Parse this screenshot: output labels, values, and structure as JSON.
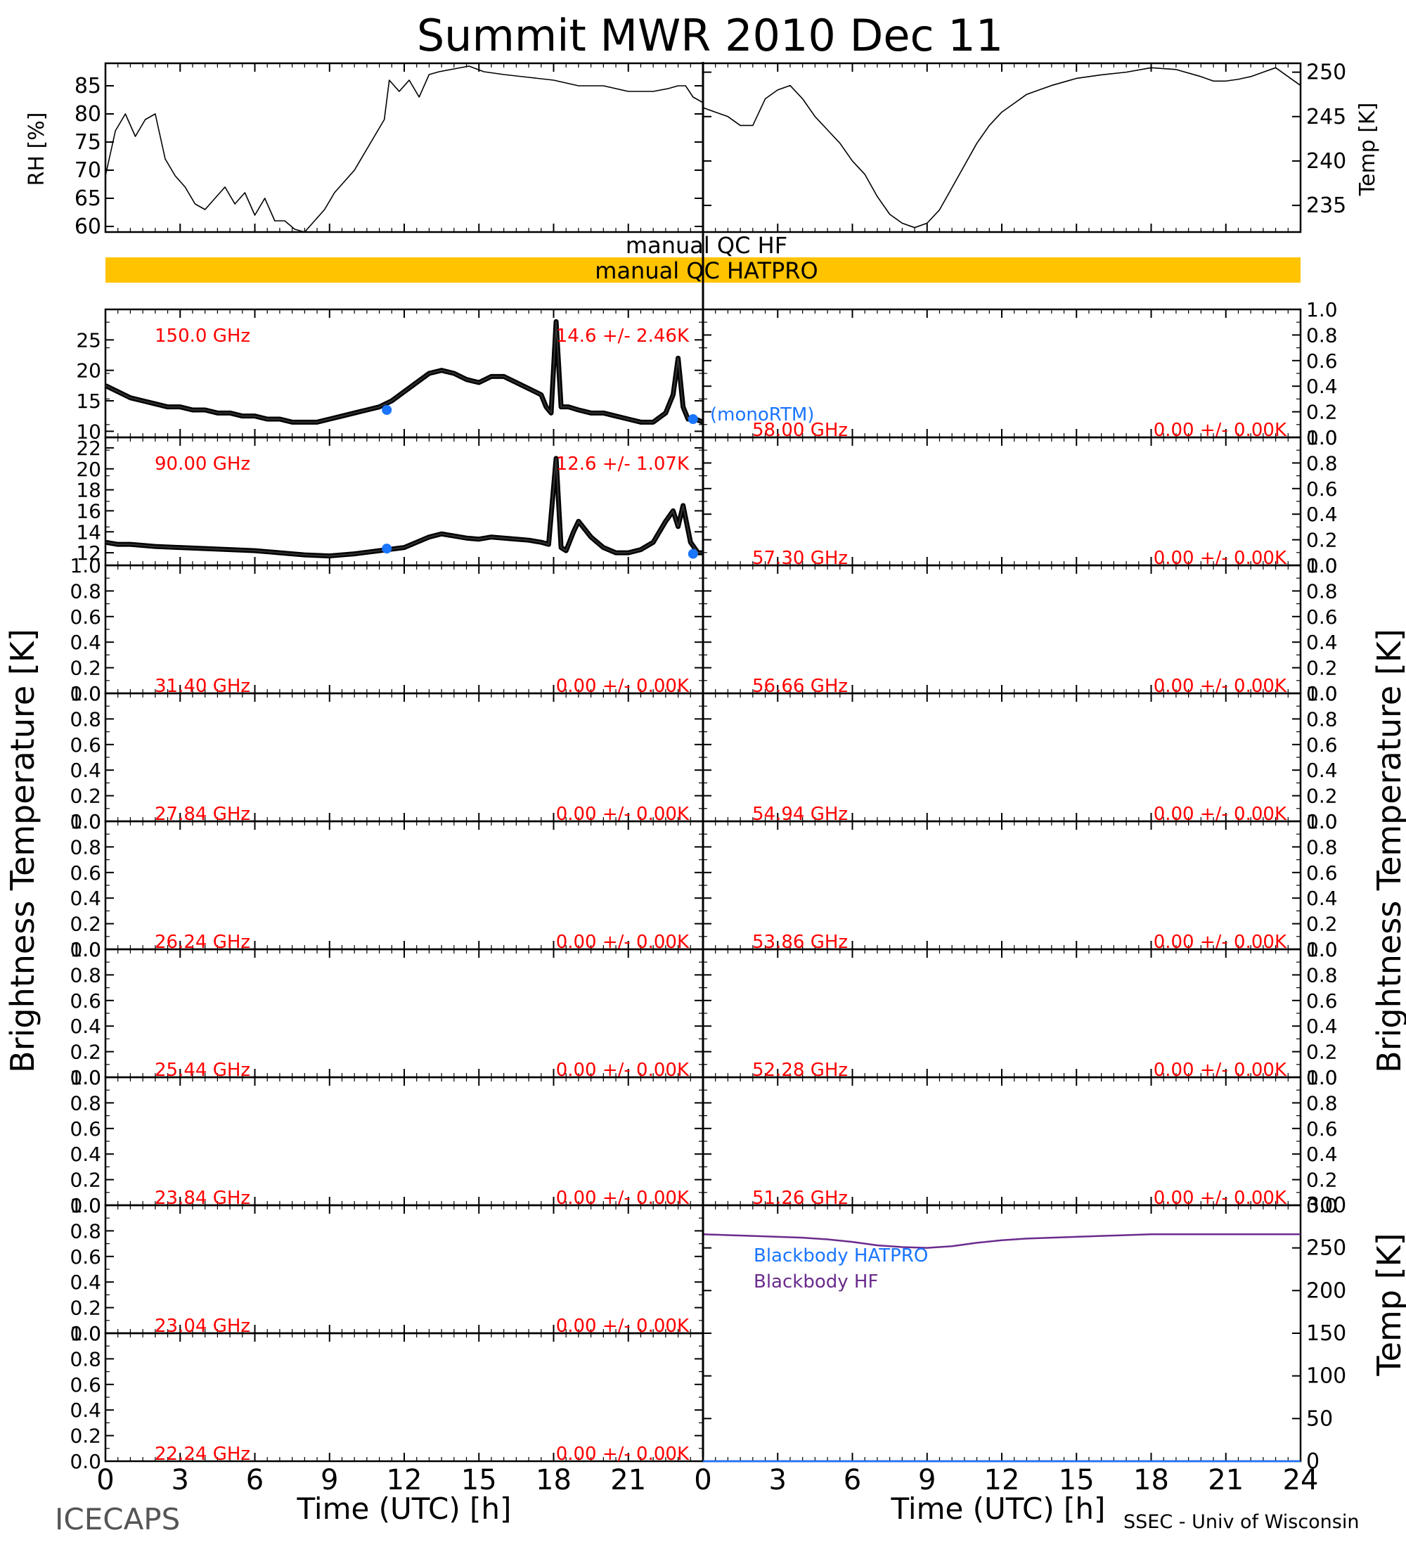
{
  "title": "Summit MWR 2010 Dec 11",
  "footer": {
    "left": "ICECAPS",
    "right": "SSEC - Univ of Wisconsin"
  },
  "xaxis": {
    "label": "Time (UTC) [h]",
    "left_ticks": [
      "0",
      "3",
      "6",
      "9",
      "12",
      "15",
      "18",
      "21"
    ],
    "right_ticks": [
      "0",
      "3",
      "6",
      "9",
      "12",
      "15",
      "18",
      "21",
      "24"
    ]
  },
  "ylabels": {
    "rh": "RH [%]",
    "temp_top": "Temp [K]",
    "tb_left": "Brightness Temperature [K]",
    "tb_right": "Brightness Temperature [K]",
    "temp_bottom": "Temp [K]"
  },
  "flags": {
    "hf": "manual QC HF",
    "hatpro": "manual QC HATPRO",
    "hatpro_color": "#ffc300"
  },
  "colors": {
    "annotation": "#ff0000",
    "model": "#1a75ff",
    "bb_hf": "#6a2c8c",
    "bb_hatpro": "#1a75ff"
  },
  "legend": {
    "model": "(monoRTM)",
    "bb_hatpro": "Blackbody HATPRO",
    "bb_hf": "Blackbody HF"
  },
  "chart_data": [
    {
      "id": "rh",
      "type": "line",
      "ylabel": "RH [%]",
      "xlim": [
        0,
        24
      ],
      "ylim": [
        59,
        89
      ],
      "yticks": [
        "60",
        "65",
        "70",
        "75",
        "80",
        "85"
      ],
      "x": [
        0,
        0.4,
        0.8,
        1.2,
        1.6,
        2.0,
        2.4,
        2.8,
        3.2,
        3.6,
        4.0,
        4.4,
        4.8,
        5.2,
        5.6,
        6.0,
        6.4,
        6.8,
        7.2,
        7.6,
        8.0,
        8.4,
        8.8,
        9.2,
        9.6,
        10.0,
        10.4,
        10.8,
        11.2,
        11.4,
        11.8,
        12.2,
        12.6,
        13.0,
        13.4,
        14.0,
        14.6,
        15.2,
        16.0,
        17.0,
        18.0,
        19.0,
        20.0,
        21.0,
        22.0,
        22.6,
        23.0,
        23.3,
        23.6,
        24.0
      ],
      "y": [
        69,
        77,
        80,
        76,
        79,
        80,
        72,
        69,
        67,
        64,
        63,
        65,
        67,
        64,
        66,
        62,
        65,
        61,
        61,
        59.5,
        59,
        61,
        63,
        66,
        68,
        70,
        73,
        76,
        79,
        86,
        84,
        86,
        83,
        87,
        87.5,
        88,
        88.5,
        87.5,
        87,
        86.5,
        86,
        85,
        85,
        84,
        84,
        84.5,
        85,
        85,
        83,
        82
      ]
    },
    {
      "id": "temp_top",
      "type": "line",
      "ylabel": "Temp [K]",
      "xlim": [
        0,
        24
      ],
      "ylim": [
        232,
        251
      ],
      "yticks": [
        "235",
        "240",
        "245",
        "250"
      ],
      "x": [
        0,
        0.5,
        1.0,
        1.5,
        2.0,
        2.5,
        3.0,
        3.5,
        4.0,
        4.5,
        5.0,
        5.5,
        6.0,
        6.5,
        7.0,
        7.5,
        8.0,
        8.5,
        9.0,
        9.5,
        10.0,
        10.5,
        11.0,
        11.5,
        12.0,
        12.5,
        13.0,
        13.5,
        14.0,
        15.0,
        16.0,
        17.0,
        18.0,
        19.0,
        20.0,
        20.5,
        21.0,
        21.5,
        22.0,
        22.5,
        23.0,
        23.5,
        24.0
      ],
      "y": [
        246,
        245.5,
        245,
        244,
        244,
        247,
        248,
        248.5,
        247,
        245,
        243.5,
        242,
        240,
        238.5,
        236,
        234,
        233,
        232.5,
        233,
        234.5,
        237,
        239.5,
        242,
        244,
        245.5,
        246.5,
        247.5,
        248,
        248.5,
        249.3,
        249.7,
        250,
        250.5,
        250.3,
        249.5,
        249,
        249,
        249.2,
        249.5,
        250,
        250.5,
        249.5,
        248.5
      ]
    },
    {
      "id": "tb_150",
      "type": "line",
      "annotation_left": "150.0 GHz",
      "annotation_right": "14.6 +/- 2.46K",
      "xlim": [
        0,
        24
      ],
      "ylim": [
        9,
        30
      ],
      "yticks": [
        "10",
        "15",
        "20",
        "25"
      ],
      "x": [
        0,
        0.5,
        1,
        1.5,
        2,
        2.5,
        3,
        3.5,
        4,
        4.5,
        5,
        5.5,
        6,
        6.5,
        7,
        7.5,
        8,
        8.5,
        9,
        9.5,
        10,
        10.5,
        11,
        11.5,
        12,
        12.5,
        13,
        13.5,
        14,
        14.5,
        15,
        15.5,
        16,
        16.5,
        17,
        17.5,
        17.7,
        17.9,
        18.1,
        18.3,
        18.6,
        19,
        19.5,
        20,
        20.5,
        21,
        21.5,
        22,
        22.5,
        22.8,
        23,
        23.2,
        23.4,
        23.7,
        24
      ],
      "y": [
        17.5,
        16.5,
        15.5,
        15,
        14.5,
        14,
        14,
        13.5,
        13.5,
        13,
        13,
        12.5,
        12.5,
        12,
        12,
        11.5,
        11.5,
        11.5,
        12,
        12.5,
        13,
        13.5,
        14,
        15,
        16.5,
        18,
        19.5,
        20,
        19.5,
        18.5,
        18,
        19,
        19,
        18,
        17,
        16,
        14,
        13,
        28,
        14,
        14,
        13.5,
        13,
        13,
        12.5,
        12,
        11.5,
        11.5,
        13,
        16,
        22,
        14,
        12,
        12,
        11.5
      ],
      "model_points": {
        "x": [
          11.3,
          23.6
        ],
        "y": [
          13.5,
          12
        ]
      }
    },
    {
      "id": "tb_90",
      "type": "line",
      "annotation_left": "90.00 GHz",
      "annotation_right": "12.6 +/- 1.07K",
      "xlim": [
        0,
        24
      ],
      "ylim": [
        10.8,
        23
      ],
      "yticks": [
        "12",
        "14",
        "16",
        "18",
        "20",
        "22"
      ],
      "x": [
        0,
        0.5,
        1,
        1.5,
        2,
        3,
        4,
        5,
        6,
        7,
        8,
        9,
        10,
        11,
        12,
        12.5,
        13,
        13.5,
        14,
        14.5,
        15,
        15.5,
        16,
        16.5,
        17,
        17.5,
        17.8,
        18.1,
        18.3,
        18.5,
        18.8,
        19,
        19.5,
        20,
        20.5,
        21,
        21.5,
        22,
        22.5,
        22.8,
        23,
        23.2,
        23.5,
        23.8,
        24
      ],
      "y": [
        13,
        12.8,
        12.8,
        12.7,
        12.6,
        12.5,
        12.4,
        12.3,
        12.2,
        12,
        11.8,
        11.7,
        11.9,
        12.2,
        12.5,
        13,
        13.5,
        13.8,
        13.6,
        13.4,
        13.3,
        13.5,
        13.4,
        13.3,
        13.2,
        13,
        12.8,
        21,
        12.5,
        12.2,
        14,
        15,
        13.5,
        12.5,
        12,
        12,
        12.3,
        13,
        15,
        16,
        14.5,
        16.5,
        13,
        12,
        12
      ],
      "model_points": {
        "x": [
          11.3,
          23.6
        ],
        "y": [
          12.4,
          11.9
        ]
      }
    },
    {
      "id": "tb_31.40",
      "type": "line",
      "annotation_left": "31.40 GHz",
      "annotation_right": "0.00 +/- 0.00K",
      "xlim": [
        0,
        24
      ],
      "ylim": [
        0,
        1
      ],
      "x": [],
      "y": []
    },
    {
      "id": "tb_27.84",
      "type": "line",
      "annotation_left": "27.84 GHz",
      "annotation_right": "0.00 +/- 0.00K",
      "xlim": [
        0,
        24
      ],
      "ylim": [
        0,
        1
      ],
      "x": [],
      "y": []
    },
    {
      "id": "tb_26.24",
      "type": "line",
      "annotation_left": "26.24 GHz",
      "annotation_right": "0.00 +/- 0.00K",
      "xlim": [
        0,
        24
      ],
      "ylim": [
        0,
        1
      ],
      "x": [],
      "y": []
    },
    {
      "id": "tb_25.44",
      "type": "line",
      "annotation_left": "25.44 GHz",
      "annotation_right": "0.00 +/- 0.00K",
      "xlim": [
        0,
        24
      ],
      "ylim": [
        0,
        1
      ],
      "x": [],
      "y": []
    },
    {
      "id": "tb_23.84",
      "type": "line",
      "annotation_left": "23.84 GHz",
      "annotation_right": "0.00 +/- 0.00K",
      "xlim": [
        0,
        24
      ],
      "ylim": [
        0,
        1
      ],
      "x": [],
      "y": []
    },
    {
      "id": "tb_23.04",
      "type": "line",
      "annotation_left": "23.04 GHz",
      "annotation_right": "0.00 +/- 0.00K",
      "xlim": [
        0,
        24
      ],
      "ylim": [
        0,
        1
      ],
      "x": [],
      "y": []
    },
    {
      "id": "tb_22.24",
      "type": "line",
      "annotation_left": "22.24 GHz",
      "annotation_right": "0.00 +/- 0.00K",
      "xlim": [
        0,
        24
      ],
      "ylim": [
        0,
        1
      ],
      "x": [],
      "y": []
    },
    {
      "id": "tb_58.00",
      "type": "line",
      "annotation_left": "58.00 GHz",
      "annotation_right": "0.00 +/- 0.00K",
      "xlim": [
        0,
        24
      ],
      "ylim": [
        0,
        1
      ],
      "x": [],
      "y": []
    },
    {
      "id": "tb_57.30",
      "type": "line",
      "annotation_left": "57.30 GHz",
      "annotation_right": "0.00 +/- 0.00K",
      "xlim": [
        0,
        24
      ],
      "ylim": [
        0,
        1
      ],
      "x": [],
      "y": []
    },
    {
      "id": "tb_56.66",
      "type": "line",
      "annotation_left": "56.66 GHz",
      "annotation_right": "0.00 +/- 0.00K",
      "xlim": [
        0,
        24
      ],
      "ylim": [
        0,
        1
      ],
      "x": [],
      "y": []
    },
    {
      "id": "tb_54.94",
      "type": "line",
      "annotation_left": "54.94 GHz",
      "annotation_right": "0.00 +/- 0.00K",
      "xlim": [
        0,
        24
      ],
      "ylim": [
        0,
        1
      ],
      "x": [],
      "y": []
    },
    {
      "id": "tb_53.86",
      "type": "line",
      "annotation_left": "53.86 GHz",
      "annotation_right": "0.00 +/- 0.00K",
      "xlim": [
        0,
        24
      ],
      "ylim": [
        0,
        1
      ],
      "x": [],
      "y": []
    },
    {
      "id": "tb_52.28",
      "type": "line",
      "annotation_left": "52.28 GHz",
      "annotation_right": "0.00 +/- 0.00K",
      "xlim": [
        0,
        24
      ],
      "ylim": [
        0,
        1
      ],
      "x": [],
      "y": []
    },
    {
      "id": "tb_51.26",
      "type": "line",
      "annotation_left": "51.26 GHz",
      "annotation_right": "0.00 +/- 0.00K",
      "xlim": [
        0,
        24
      ],
      "ylim": [
        0,
        1
      ],
      "x": [],
      "y": []
    },
    {
      "id": "blackbody",
      "type": "line",
      "ylabel": "Temp [K]",
      "xlim": [
        0,
        24
      ],
      "ylim": [
        0,
        300
      ],
      "yticks": [
        "0",
        "50",
        "100",
        "150",
        "200",
        "250",
        "300"
      ],
      "series": [
        {
          "name": "Blackbody HF",
          "x": [
            0,
            1,
            2,
            3,
            4,
            5,
            6,
            7,
            8,
            9,
            10,
            11,
            12,
            13,
            14,
            15,
            16,
            17,
            18,
            19,
            20,
            21,
            22,
            23,
            24
          ],
          "y": [
            266,
            265,
            264,
            263,
            262,
            260,
            257,
            253,
            251,
            250,
            252,
            256,
            259,
            261,
            262,
            263,
            264,
            265,
            266,
            266,
            266,
            266,
            266,
            266,
            266
          ]
        },
        {
          "name": "Blackbody HATPRO",
          "x": [
            0,
            24
          ],
          "y": [
            0,
            0
          ]
        }
      ]
    }
  ]
}
